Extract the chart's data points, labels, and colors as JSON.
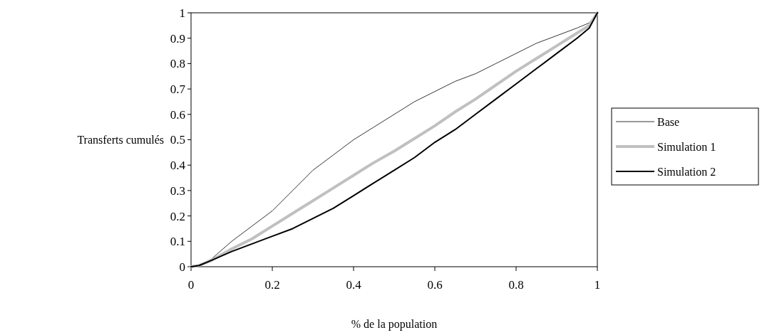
{
  "chart_data": {
    "type": "line",
    "xlabel": "% de la population",
    "ylabel": "Transferts cumulés",
    "xlim": [
      0,
      1
    ],
    "ylim": [
      0,
      1
    ],
    "xticks": [
      0,
      {
        "value": 0.2,
        "label": "0.2"
      },
      {
        "value": 0.4,
        "label": "0.4"
      },
      {
        "value": 0.6,
        "label": "0.6"
      },
      {
        "value": 0.8,
        "label": "0.8"
      },
      1
    ],
    "yticks": [
      0,
      {
        "value": 0.1,
        "label": "0.1"
      },
      {
        "value": 0.2,
        "label": "0.2"
      },
      {
        "value": 0.3,
        "label": "0.3"
      },
      {
        "value": 0.4,
        "label": "0.4"
      },
      {
        "value": 0.5,
        "label": "0.5"
      },
      {
        "value": 0.6,
        "label": "0.6"
      },
      {
        "value": 0.7,
        "label": "0.7"
      },
      {
        "value": 0.8,
        "label": "0.8"
      },
      {
        "value": 0.9,
        "label": "0.9"
      },
      1
    ],
    "legend": "right",
    "grid": false,
    "x": [
      0,
      0.02,
      0.05,
      0.1,
      0.15,
      0.2,
      0.25,
      0.3,
      0.35,
      0.4,
      0.45,
      0.5,
      0.55,
      0.6,
      0.65,
      0.7,
      0.75,
      0.8,
      0.85,
      0.9,
      0.95,
      0.98,
      1
    ],
    "series": [
      {
        "name": "Base",
        "color": "#000000",
        "values": [
          0,
          0.005,
          0.03,
          0.1,
          0.16,
          0.22,
          0.3,
          0.38,
          0.44,
          0.5,
          0.55,
          0.6,
          0.65,
          0.69,
          0.73,
          0.76,
          0.8,
          0.84,
          0.88,
          0.91,
          0.94,
          0.96,
          1
        ]
      },
      {
        "name": "Simulation 1",
        "color": "#c0c0c0",
        "values": [
          0,
          0.005,
          0.025,
          0.07,
          0.11,
          0.16,
          0.21,
          0.26,
          0.31,
          0.36,
          0.41,
          0.455,
          0.505,
          0.555,
          0.61,
          0.66,
          0.715,
          0.77,
          0.82,
          0.87,
          0.92,
          0.95,
          1
        ]
      },
      {
        "name": "Simulation 2",
        "color": "#000000",
        "values": [
          0,
          0.005,
          0.025,
          0.06,
          0.09,
          0.12,
          0.15,
          0.19,
          0.23,
          0.28,
          0.33,
          0.38,
          0.43,
          0.49,
          0.54,
          0.6,
          0.66,
          0.72,
          0.78,
          0.84,
          0.9,
          0.94,
          1
        ]
      }
    ]
  }
}
